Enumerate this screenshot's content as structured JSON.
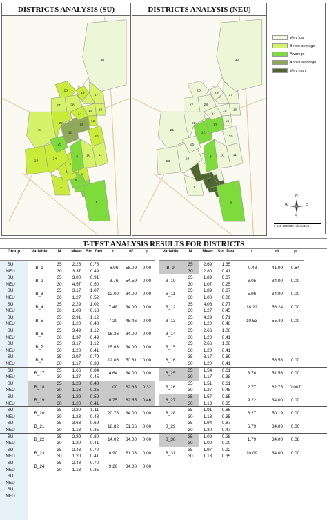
{
  "panel_su": {
    "title": "DISTRICTS ANALYSIS (SU)"
  },
  "panel_neu": {
    "title": "DISTRICTS ANALYSIS (NEU)"
  },
  "legend": [
    {
      "label": "Very low",
      "color": "#f2f7e0"
    },
    {
      "label": "Below average",
      "color": "#d6f26a"
    },
    {
      "label": "Awarege",
      "color": "#7edb3c"
    },
    {
      "label": "Above awarege",
      "color": "#8fa85a"
    },
    {
      "label": "Very high",
      "color": "#4f6630"
    }
  ],
  "compass": {
    "n": "N",
    "s": "S",
    "e": "E",
    "w": "W"
  },
  "scale": {
    "label": "0   145  290      580 Kilometers"
  },
  "map_su_fills": {
    "30": "#eef6d8",
    "17": "#d6f26a",
    "18": "#d6f26a",
    "19": "#d6f26a",
    "26": "#c9ec3a",
    "27": "#d6f26a",
    "28": "#d6f26a",
    "29": "#c9ec3a",
    "14": "#c9ec3a",
    "15": "#d6f26a",
    "16": "#c9ec3a",
    "13": "#8fa85a",
    "12": "#8fa85a",
    "20": "#c9ec3a",
    "21": "#d6f26a",
    "22": "#c9ec3a",
    "23": "#c9ec3a",
    "24": "#c9ec3a",
    "25": "#7edb3c",
    "11": "#d6f26a",
    "10": "#d6f26a",
    "8": "#7edb3c",
    "7": "#c9ec3a",
    "6": "#c9ec3a",
    "5": "#7edb3c",
    "4": "#7edb3c",
    "3": "#7edb3c",
    "2": "#c9ec3a",
    "1": "#c9ec3a",
    "9": "#7edb3c"
  },
  "map_neu_fills": {
    "30": "#eef6d8",
    "17": "#eef6d8",
    "18": "#eef6d8",
    "19": "#eef6d8",
    "26": "#eef6d8",
    "27": "#eef6d8",
    "28": "#eef6d8",
    "29": "#eef6d8",
    "14": "#eef6d8",
    "15": "#eef6d8",
    "16": "#eef6d8",
    "13": "#7edb3c",
    "12": "#7edb3c",
    "20": "#eef6d8",
    "21": "#eef6d8",
    "22": "#eef6d8",
    "23": "#eef6d8",
    "24": "#eef6d8",
    "25": "#eef6d8",
    "11": "#eef6d8",
    "10": "#eef6d8",
    "8": "#7edb3c",
    "7": "#eef6d8",
    "6": "#4f6630",
    "5": "#4f6630",
    "4": "#4f6630",
    "3": "#4f6630",
    "2": "#eef6d8",
    "1": "#eef6d8",
    "9": "#7edb3c"
  },
  "table": {
    "title": "T-TEST ANALYSIS RESULTS FOR DISTRICTS",
    "headers_left": [
      "Group",
      "Variable",
      "N",
      "Mean",
      "Std. Dev.",
      "t",
      "df",
      "p"
    ],
    "headers_right": [
      "Variable",
      "N",
      "Mean",
      "Std. Dev.",
      "t",
      "df",
      "p"
    ],
    "groups": [
      "SU",
      "NEU",
      "SU",
      "NEU",
      "SU",
      "NEU",
      "SU",
      "NEU",
      "SU",
      "NEU",
      "SU",
      "NEU",
      "SU",
      "NEU",
      "SU",
      "NEU",
      "SU",
      "NEU",
      "SU",
      "NEU",
      "SU",
      "NEU",
      "SU",
      "NEU",
      "SU",
      "NEU",
      "SU",
      "NEU",
      "SU",
      "NEU",
      "SU",
      "NEU",
      "SU",
      "NEU",
      "SU",
      "NEU"
    ],
    "left": [
      {
        "var": "B_1",
        "n": [
          "35",
          "30"
        ],
        "mean": [
          "2.26",
          "3.37"
        ],
        "sd": [
          "0.78",
          "0.49"
        ],
        "t": "-6.96",
        "df": "58.09",
        "p": "0.00"
      },
      {
        "var": "B_2",
        "n": [
          "35",
          "30"
        ],
        "mean": [
          "3.00",
          "4.57"
        ],
        "sd": [
          "0.91",
          "0.50"
        ],
        "t": "-8.76",
        "df": "54.59",
        "p": "0.00"
      },
      {
        "var": "B_3",
        "n": [
          "35",
          "30"
        ],
        "mean": [
          "3.17",
          "1.27"
        ],
        "sd": [
          "1.07",
          "0.52"
        ],
        "t": "12.00",
        "df": "34.00",
        "p": "0.00"
      },
      {
        "var": "B_4",
        "n": [
          "35",
          "30"
        ],
        "mean": [
          "2.29",
          "1.03"
        ],
        "sd": [
          "1.02",
          "0.18"
        ],
        "t": "7.48",
        "df": "34.00",
        "p": "0.00"
      },
      {
        "var": "B_5",
        "n": [
          "35",
          "30"
        ],
        "mean": [
          "2.91",
          "1.20"
        ],
        "sd": [
          "1.12",
          "0.48"
        ],
        "t": "7.20",
        "df": "48.46",
        "p": "0.00"
      },
      {
        "var": "B_6",
        "n": [
          "35",
          "30"
        ],
        "mean": [
          "3.49",
          "1.37"
        ],
        "sd": [
          "1.12",
          "0.49"
        ],
        "t": "16.36",
        "df": "34.00",
        "p": "0.00"
      },
      {
        "var": "B_7",
        "n": [
          "35",
          "30"
        ],
        "mean": [
          "3.17",
          "1.20"
        ],
        "sd": [
          "1.12",
          "0.41"
        ],
        "t": "15.63",
        "df": "34.00",
        "p": "0.00"
      },
      {
        "var": "B_8",
        "n": [
          "35",
          "30"
        ],
        "mean": [
          "2.97",
          "1.17"
        ],
        "sd": [
          "0.79",
          "0.38"
        ],
        "t": "12.06",
        "df": "50.61",
        "p": "0.00"
      },
      {
        "var": "B_17",
        "n": [
          "35",
          "30"
        ],
        "mean": [
          "1.66",
          "1.27"
        ],
        "sd": [
          "0.84",
          "0.45"
        ],
        "t": "4.64",
        "df": "34.00",
        "p": "0.00"
      },
      {
        "var": "B_18",
        "n": [
          "35",
          "30"
        ],
        "mean": [
          "1.23",
          "1.13"
        ],
        "sd": [
          "0.43",
          "0.35"
        ],
        "t": "1.00",
        "df": "62.83",
        "p": "0.32"
      },
      {
        "var": "B_19",
        "n": [
          "35",
          "30"
        ],
        "mean": [
          "1.29",
          "1.20"
        ],
        "sd": [
          "0.52",
          "0.41"
        ],
        "t": "0.75",
        "df": "62.55",
        "p": "0.46"
      },
      {
        "var": "B_20",
        "n": [
          "35",
          "30"
        ],
        "mean": [
          "2.20",
          "1.23"
        ],
        "sd": [
          "1.11",
          "0.43"
        ],
        "t": "20.78",
        "df": "34.00",
        "p": "0.00"
      },
      {
        "var": "B_21",
        "n": [
          "35",
          "30"
        ],
        "mean": [
          "3.63",
          "1.13"
        ],
        "sd": [
          "0.69",
          "0.35"
        ],
        "t": "18.82",
        "df": "51.66",
        "p": "0.00"
      },
      {
        "var": "B_22",
        "n": [
          "35",
          "30"
        ],
        "mean": [
          "2.89",
          "1.20"
        ],
        "sd": [
          "0.80",
          "0.41"
        ],
        "t": "14.02",
        "df": "34.00",
        "p": "0.00"
      },
      {
        "var": "B_23",
        "n": [
          "35",
          "30"
        ],
        "mean": [
          "2.43",
          "1.20"
        ],
        "sd": [
          "0.70",
          "0.41"
        ],
        "t": "8.90",
        "df": "61.03",
        "p": "0.00"
      },
      {
        "var": "B_24",
        "n": [
          "35",
          "30"
        ],
        "mean": [
          "2.43",
          "1.13"
        ],
        "sd": [
          "0.70",
          "0.35"
        ],
        "t": "9.26",
        "df": "34.00",
        "p": "0.00"
      }
    ],
    "right": [
      {
        "var": "B_9",
        "n": [
          "35",
          "30"
        ],
        "mean": [
          "2.69",
          "2.80"
        ],
        "sd": [
          "1.35",
          "0.41"
        ],
        "t": "-0.48",
        "df": "41.09",
        "p": "0.64"
      },
      {
        "var": "B_10",
        "n": [
          "35",
          "30"
        ],
        "mean": [
          "1.89",
          "1.07"
        ],
        "sd": [
          "0.87",
          "0.25"
        ],
        "t": "6.05",
        "df": "34.00",
        "p": "0.00"
      },
      {
        "var": "B_11",
        "n": [
          "35",
          "30"
        ],
        "mean": [
          "1.89",
          "1.00"
        ],
        "sd": [
          "0.87",
          "0.00"
        ],
        "t": "5.96",
        "df": "34.00",
        "p": "0.00"
      },
      {
        "var": "B_12",
        "n": [
          "35",
          "30"
        ],
        "mean": [
          "4.06",
          "1.27"
        ],
        "sd": [
          "0.77",
          "0.45"
        ],
        "t": "18.22",
        "df": "56.24",
        "p": "0.00"
      },
      {
        "var": "B_13",
        "n": [
          "35",
          "30"
        ],
        "mean": [
          "4.29",
          "1.20"
        ],
        "sd": [
          "0.71",
          "0.48"
        ],
        "t": "10.53",
        "df": "55.49",
        "p": "0.00"
      },
      {
        "var": "B_14",
        "n": [
          "35",
          "30"
        ],
        "mean": [
          "2.66",
          "1.20"
        ],
        "sd": [
          "1.00",
          "0.41"
        ],
        "t": "",
        "df": "",
        "p": ""
      },
      {
        "var": "B_15",
        "n": [
          "35",
          "30"
        ],
        "mean": [
          "2.66",
          "1.20"
        ],
        "sd": [
          "1.00",
          "0.41"
        ],
        "t": "",
        "df": "",
        "p": ""
      },
      {
        "var": "B_16",
        "n": [
          "35",
          "30"
        ],
        "mean": [
          "3.17",
          "1.20"
        ],
        "sd": [
          "0.89",
          "0.41"
        ],
        "t": "",
        "df": "56.58",
        "p": "0.00"
      },
      {
        "var": "B_25",
        "n": [
          "35",
          "30"
        ],
        "mean": [
          "1.54",
          "1.17"
        ],
        "sd": [
          "0.61",
          "0.38"
        ],
        "t": "3.78",
        "df": "51.56",
        "p": "0.00"
      },
      {
        "var": "B_26",
        "n": [
          "35",
          "30"
        ],
        "mean": [
          "1.51",
          "1.27"
        ],
        "sd": [
          "0.61",
          "0.45"
        ],
        "t": "2.77",
        "df": "62.75",
        "p": "0.007"
      },
      {
        "var": "B_27",
        "n": [
          "35",
          "30"
        ],
        "mean": [
          "1.57",
          "1.13"
        ],
        "sd": [
          "0.65",
          "0.35"
        ],
        "t": "9.22",
        "df": "34.00",
        "p": "0.00"
      },
      {
        "var": "B_28",
        "n": [
          "35",
          "30"
        ],
        "mean": [
          "1.91",
          "1.13"
        ],
        "sd": [
          "0.85",
          "0.35"
        ],
        "t": "6.27",
        "df": "50.19",
        "p": "0.00"
      },
      {
        "var": "B_29",
        "n": [
          "35",
          "30"
        ],
        "mean": [
          "1.94",
          "1.30"
        ],
        "sd": [
          "0.87",
          "0.47"
        ],
        "t": "6.79",
        "df": "34.00",
        "p": "0.00"
      },
      {
        "var": "B_30",
        "n": [
          "35",
          "30"
        ],
        "mean": [
          "1.09",
          "1.00"
        ],
        "sd": [
          "0.28",
          "0.00"
        ],
        "t": "1.79",
        "df": "34.00",
        "p": "0.08"
      },
      {
        "var": "B_31",
        "n": [
          "35",
          "30"
        ],
        "mean": [
          "1.97",
          "1.13"
        ],
        "sd": [
          "0.92",
          "0.35"
        ],
        "t": "10.09",
        "df": "34.00",
        "p": "0.00"
      }
    ]
  }
}
